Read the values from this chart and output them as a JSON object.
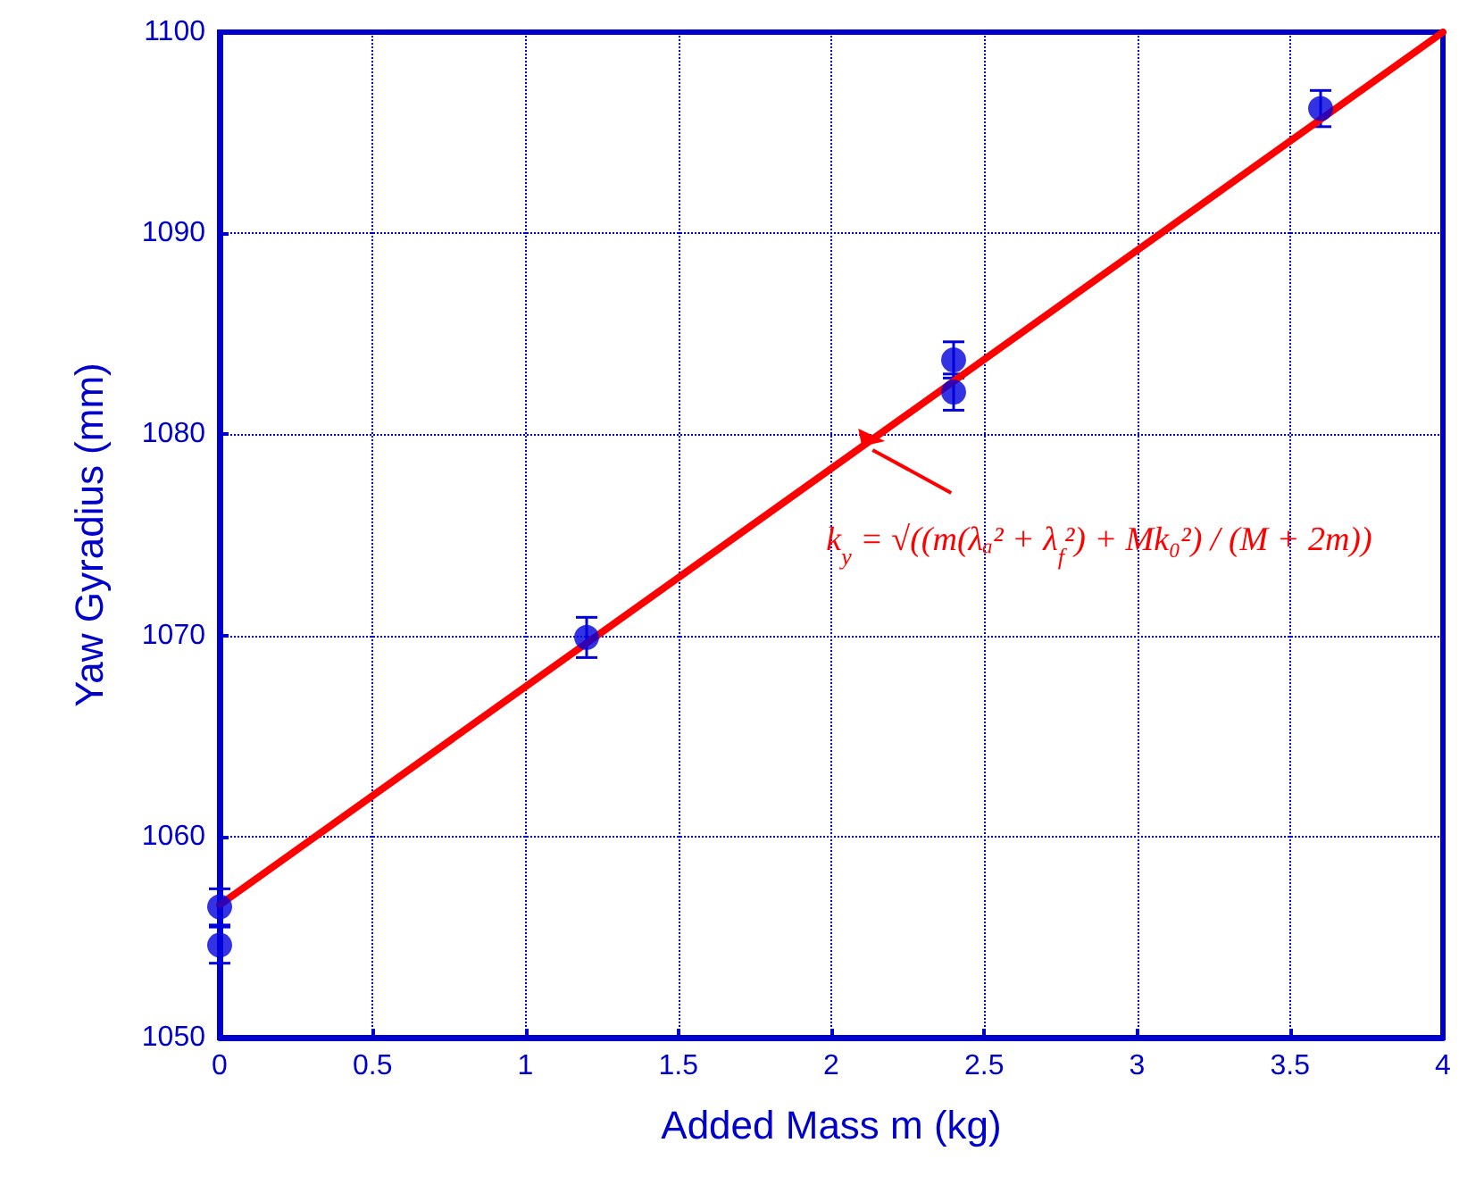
{
  "chart_data": {
    "type": "scatter",
    "xlabel": "Added Mass m (kg)",
    "ylabel": "Yaw Gyradius (mm)",
    "xlim": [
      0,
      4
    ],
    "xticks": [
      0,
      0.5,
      1,
      1.5,
      2,
      2.5,
      3,
      3.5,
      4
    ],
    "ylim": [
      1050,
      1100
    ],
    "yticks": [
      1050,
      1060,
      1070,
      1080,
      1090,
      1100
    ],
    "grid": true,
    "marker": "circle",
    "series": [
      {
        "color": "#0000dd",
        "x": [
          0,
          0,
          1.2,
          2.4,
          2.4,
          3.6
        ],
        "values": [
          1056.5,
          1054.6,
          1069.9,
          1083.7,
          1082.1,
          1096.2
        ],
        "errors": [
          0.9,
          0.9,
          1,
          0.9,
          0.9,
          0.9
        ]
      },
      {
        "type": "line",
        "color": "#ff0000",
        "marker": "none",
        "line_style": "solid",
        "x": [
          0,
          4
        ],
        "values": [
          1056.6,
          1100
        ]
      }
    ],
    "annotations": [
      {
        "text": "k$_{y}$ = √((m(λₐ² + λ$_{f}$²) + Mk₀²) / (M + 2m))",
        "x": 2.1,
        "y": 1079.4
      }
    ]
  }
}
